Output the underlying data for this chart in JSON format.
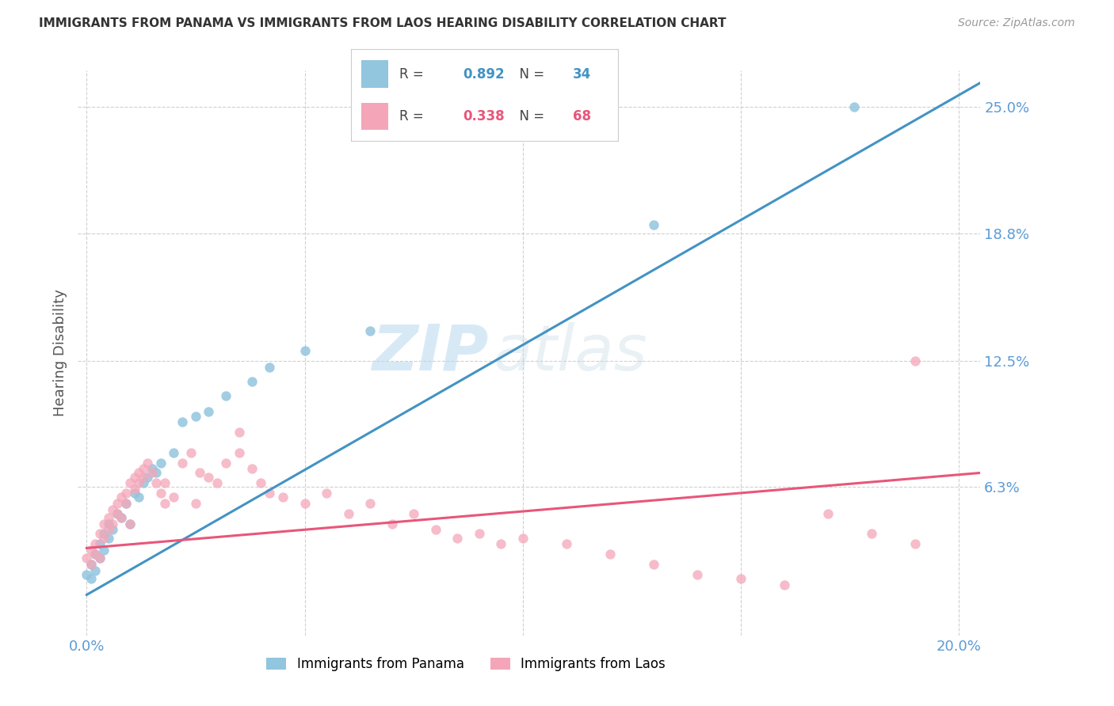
{
  "title": "IMMIGRANTS FROM PANAMA VS IMMIGRANTS FROM LAOS HEARING DISABILITY CORRELATION CHART",
  "source": "Source: ZipAtlas.com",
  "xlabel_ticks_show": [
    "0.0%",
    "20.0%"
  ],
  "xlabel_tick_vals_show": [
    0.0,
    0.2
  ],
  "xlabel_tick_vals_grid": [
    0.0,
    0.05,
    0.1,
    0.15,
    0.2
  ],
  "ylabel": "Hearing Disability",
  "ylabel_ticks": [
    "6.3%",
    "12.5%",
    "18.8%",
    "25.0%"
  ],
  "ylabel_tick_vals": [
    0.063,
    0.125,
    0.188,
    0.25
  ],
  "ylabel_tick_vals_grid": [
    0.0,
    0.063,
    0.125,
    0.188,
    0.25
  ],
  "xlim": [
    -0.002,
    0.205
  ],
  "ylim": [
    -0.01,
    0.268
  ],
  "series1": {
    "label": "Immigrants from Panama",
    "R": "0.892",
    "N": "34",
    "color": "#92c5de",
    "line_color": "#4393c3",
    "x": [
      0.0,
      0.001,
      0.001,
      0.002,
      0.002,
      0.003,
      0.003,
      0.004,
      0.004,
      0.005,
      0.005,
      0.006,
      0.007,
      0.008,
      0.009,
      0.01,
      0.011,
      0.012,
      0.013,
      0.014,
      0.015,
      0.016,
      0.017,
      0.02,
      0.022,
      0.025,
      0.028,
      0.032,
      0.038,
      0.042,
      0.05,
      0.065,
      0.13,
      0.176
    ],
    "y": [
      0.02,
      0.018,
      0.025,
      0.022,
      0.03,
      0.028,
      0.035,
      0.032,
      0.04,
      0.038,
      0.045,
      0.042,
      0.05,
      0.048,
      0.055,
      0.045,
      0.06,
      0.058,
      0.065,
      0.068,
      0.072,
      0.07,
      0.075,
      0.08,
      0.095,
      0.098,
      0.1,
      0.108,
      0.115,
      0.122,
      0.13,
      0.14,
      0.192,
      0.25
    ],
    "trend_x": [
      0.0,
      0.205
    ],
    "trend_y": [
      0.01,
      0.262
    ]
  },
  "series2": {
    "label": "Immigrants from Laos",
    "R": "0.338",
    "N": "68",
    "color": "#f4a6b8",
    "line_color": "#e8567a",
    "x": [
      0.0,
      0.001,
      0.001,
      0.002,
      0.002,
      0.003,
      0.003,
      0.004,
      0.004,
      0.005,
      0.005,
      0.006,
      0.006,
      0.007,
      0.007,
      0.008,
      0.008,
      0.009,
      0.009,
      0.01,
      0.01,
      0.011,
      0.011,
      0.012,
      0.012,
      0.013,
      0.013,
      0.014,
      0.015,
      0.016,
      0.017,
      0.018,
      0.02,
      0.022,
      0.024,
      0.026,
      0.028,
      0.03,
      0.032,
      0.035,
      0.038,
      0.04,
      0.042,
      0.045,
      0.05,
      0.055,
      0.06,
      0.065,
      0.07,
      0.075,
      0.08,
      0.085,
      0.09,
      0.095,
      0.1,
      0.11,
      0.12,
      0.13,
      0.14,
      0.15,
      0.16,
      0.17,
      0.18,
      0.19,
      0.018,
      0.025,
      0.035,
      0.19
    ],
    "y": [
      0.028,
      0.025,
      0.032,
      0.03,
      0.035,
      0.028,
      0.04,
      0.038,
      0.045,
      0.042,
      0.048,
      0.045,
      0.052,
      0.05,
      0.055,
      0.048,
      0.058,
      0.055,
      0.06,
      0.045,
      0.065,
      0.062,
      0.068,
      0.065,
      0.07,
      0.072,
      0.068,
      0.075,
      0.07,
      0.065,
      0.06,
      0.055,
      0.058,
      0.075,
      0.08,
      0.07,
      0.068,
      0.065,
      0.075,
      0.08,
      0.072,
      0.065,
      0.06,
      0.058,
      0.055,
      0.06,
      0.05,
      0.055,
      0.045,
      0.05,
      0.042,
      0.038,
      0.04,
      0.035,
      0.038,
      0.035,
      0.03,
      0.025,
      0.02,
      0.018,
      0.015,
      0.05,
      0.04,
      0.035,
      0.065,
      0.055,
      0.09,
      0.125
    ],
    "trend_x": [
      0.0,
      0.205
    ],
    "trend_y": [
      0.033,
      0.07
    ]
  },
  "watermark_zip": "ZIP",
  "watermark_atlas": "atlas",
  "background_color": "#ffffff",
  "grid_color": "#d0d0d0",
  "title_color": "#333333",
  "tick_label_color": "#5b9bd5",
  "ylabel_color": "#555555",
  "legend_box_color": "#dddddd"
}
